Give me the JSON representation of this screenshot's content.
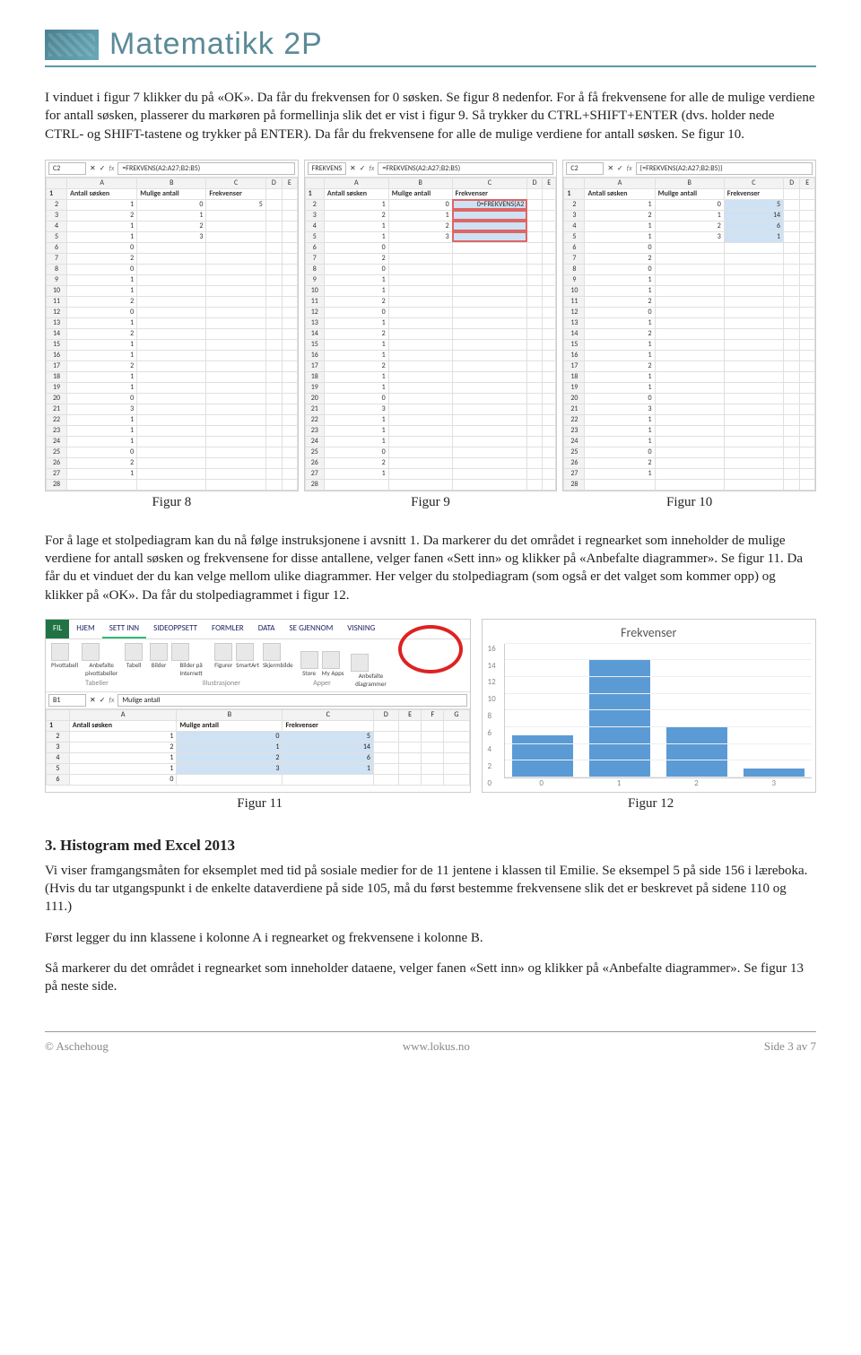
{
  "header": {
    "title": "Matematikk 2P"
  },
  "para1": "I vinduet i figur 7 klikker du på «OK». Da får du frekvensen for 0 søsken. Se figur 8 nedenfor. For å få frekvensene for alle de mulige verdiene for antall søsken, plasserer du markøren på formellinja slik det er vist i figur 9. Så trykker du CTRL+SHIFT+ENTER (dvs. holder nede CTRL- og SHIFT-tastene og trykker på ENTER). Da får du frekvensene for alle de mulige verdiene for antall søsken. Se figur 10.",
  "sheets": {
    "headers": [
      "Antall søsken",
      "Mulige antall",
      "Frekvenser"
    ],
    "colA": [
      1,
      2,
      1,
      1,
      0,
      2,
      0,
      1,
      1,
      2,
      0,
      1,
      2,
      1,
      1,
      2,
      1,
      1,
      0,
      3,
      1,
      1,
      1,
      0,
      2,
      1,
      null
    ],
    "colB": [
      0,
      1,
      2,
      3
    ],
    "fig8": {
      "namebox": "C2",
      "fx": "=FREKVENS(A2:A27;B2:B5)",
      "C": [
        5,
        null,
        null,
        null
      ]
    },
    "fig9": {
      "namebox": "FREKVENS",
      "fx": "=FREKVENS(A2:A27;B2:B5)",
      "C": [
        "0=FREKVENS(A2",
        null,
        null,
        null
      ]
    },
    "fig10": {
      "namebox": "C2",
      "fx": "{=FREKVENS(A2:A27;B2:B5)}",
      "C": [
        5,
        14,
        6,
        1
      ]
    }
  },
  "captions3": [
    "Figur 8",
    "Figur 9",
    "Figur 10"
  ],
  "para2": "For å lage et stolpediagram kan du nå følge instruksjonene i avsnitt 1. Da markerer du det området i regnearket som inneholder de mulige verdiene for antall søsken og frekvensene for disse antallene, velger fanen «Sett inn» og klikker på «Anbefalte diagrammer». Se figur 11. Da får du et vinduet der du kan velge mellom ulike diagrammer. Her velger du stolpediagram (som også er det valget som kommer opp) og klikker på «OK». Da får du stolpediagrammet i figur 12.",
  "ribbon": {
    "tabs": [
      "FIL",
      "HJEM",
      "SETT INN",
      "SIDEOPPSETT",
      "FORMLER",
      "DATA",
      "SE GJENNOM",
      "VISNING"
    ],
    "activeTab": "SETT INN",
    "groups": [
      {
        "items": [
          "Pivottabell",
          "Anbefalte pivottabeller",
          "Tabell"
        ],
        "label": "Tabeller"
      },
      {
        "items": [
          "Bilder",
          "Bilder på Internett",
          "Figurer",
          "SmartArt",
          "Skjermbilde"
        ],
        "label": "Illustrasjoner"
      },
      {
        "items": [
          "Store",
          "My Apps"
        ],
        "label": "Apper"
      },
      {
        "items": [
          "Anbefalte diagrammer"
        ],
        "label": ""
      }
    ],
    "namebox": "B1",
    "fx": "Mulige antall",
    "cols": [
      "A",
      "B",
      "C",
      "D",
      "E",
      "F",
      "G"
    ],
    "rows": [
      [
        "Antall søsken",
        "Mulige antall",
        "Frekvenser",
        "",
        "",
        "",
        ""
      ],
      [
        "1",
        "0",
        "5",
        "",
        "",
        "",
        ""
      ],
      [
        "2",
        "1",
        "14",
        "",
        "",
        "",
        ""
      ],
      [
        "1",
        "2",
        "6",
        "",
        "",
        "",
        ""
      ],
      [
        "1",
        "3",
        "1",
        "",
        "",
        "",
        ""
      ],
      [
        "0",
        "",
        "",
        "",
        "",
        "",
        ""
      ]
    ]
  },
  "chart": {
    "title": "Frekvenser",
    "yticks": [
      0,
      2,
      4,
      6,
      8,
      10,
      12,
      14,
      16
    ],
    "ymax": 16,
    "categories": [
      "0",
      "1",
      "2",
      "3"
    ],
    "values": [
      5,
      14,
      6,
      1
    ],
    "bar_color": "#5b9bd5"
  },
  "captions2": [
    "Figur 11",
    "Figur 12"
  ],
  "section3": {
    "heading": "3. Histogram med Excel 2013",
    "p1": "Vi viser framgangsmåten for eksemplet med tid på sosiale medier for de 11 jentene i klassen til Emilie. Se eksempel 5 på side 156 i læreboka. (Hvis du tar utgangspunkt i de enkelte dataverdiene på side 105, må du først bestemme frekvensene slik det er beskrevet på sidene 110 og 111.)",
    "p2": "Først legger du inn klassene i kolonne A i regnearket og frekvensene i kolonne B.",
    "p3": "Så markerer du det området i regnearket som inneholder dataene, velger fanen «Sett inn» og klikker på «Anbefalte diagrammer». Se figur 13 på neste side."
  },
  "footer": {
    "left": "© Aschehoug",
    "center": "www.lokus.no",
    "right": "Side 3 av 7"
  }
}
